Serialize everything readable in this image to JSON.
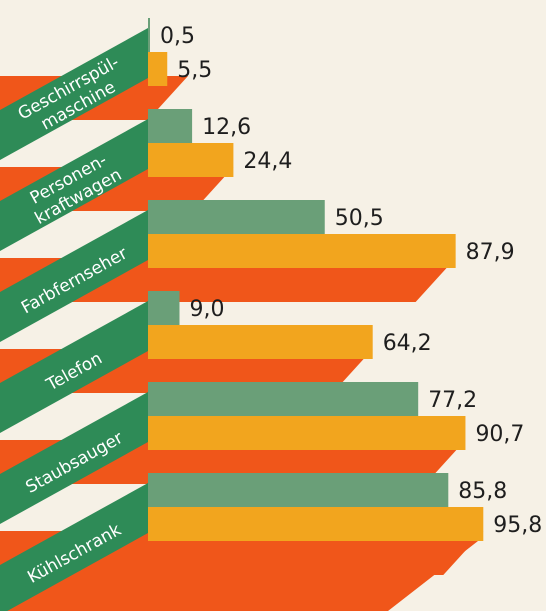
{
  "chart_data": {
    "type": "bar",
    "categories": [
      [
        "Geschirrspül-",
        "maschine"
      ],
      [
        "Personen-",
        "kraftwagen"
      ],
      [
        "Farbfernseher"
      ],
      [
        "Telefon"
      ],
      [
        "Staubsauger"
      ],
      [
        "Kühlschrank"
      ]
    ],
    "series": [
      {
        "values": [
          0.5,
          12.6,
          50.5,
          9.0,
          77.2,
          85.8
        ]
      },
      {
        "values": [
          5.5,
          24.4,
          87.9,
          64.2,
          90.7,
          95.8
        ]
      }
    ],
    "value_labels": [
      [
        "0,5",
        "12,6",
        "50,5",
        "9,0",
        "77,2",
        "85,8"
      ],
      [
        "5,5",
        "24,4",
        "87,9",
        "64,2",
        "90,7",
        "95,8"
      ]
    ],
    "xlim": [
      0,
      100
    ],
    "colors": {
      "series_1": "#6a9f78",
      "series_2": "#f2a51e",
      "band": "#f0561a",
      "label_panel": "#2e8b57"
    }
  }
}
